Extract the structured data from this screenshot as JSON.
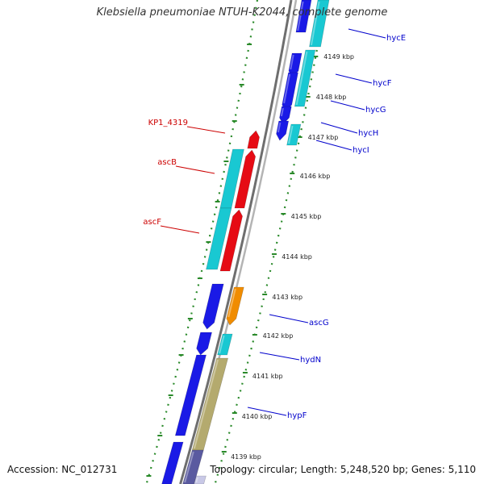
{
  "title": "Klebsiella pneumoniae NTUH-K2044, complete genome",
  "accession": "Accession: NC_012731",
  "topology": "Topology: circular; Length: 5,248,520 bp; Genes: 5,110",
  "colors": {
    "backbone": "#8c8c8c",
    "dots": "#2a8a2a",
    "blue_gene": "#1a1ae6",
    "cyan_gene": "#19c8d2",
    "red_gene": "#e60b14",
    "orange_gene": "#f08c00",
    "olive_gene": "#b4aa6e",
    "blue_label": "#0000cc",
    "red_label": "#cc0000"
  },
  "ticks": [
    {
      "label": "4149 kbp"
    },
    {
      "label": "4148 kbp"
    },
    {
      "label": "4147 kbp"
    },
    {
      "label": "4146 kbp"
    },
    {
      "label": "4145 kbp"
    },
    {
      "label": "4144 kbp"
    },
    {
      "label": "4143 kbp"
    },
    {
      "label": "4142 kbp"
    },
    {
      "label": "4141 kbp"
    },
    {
      "label": "4140 kbp"
    },
    {
      "label": "4139 kbp"
    }
  ],
  "gene_labels": [
    {
      "text": "hycE",
      "color": "blue"
    },
    {
      "text": "hycF",
      "color": "blue"
    },
    {
      "text": "hycG",
      "color": "blue"
    },
    {
      "text": "hycH",
      "color": "blue"
    },
    {
      "text": "hycI",
      "color": "blue"
    },
    {
      "text": "KP1_4319",
      "color": "red"
    },
    {
      "text": "ascB",
      "color": "red"
    },
    {
      "text": "ascF",
      "color": "red"
    },
    {
      "text": "ascG",
      "color": "blue"
    },
    {
      "text": "hydN",
      "color": "blue"
    },
    {
      "text": "hypF",
      "color": "blue"
    }
  ]
}
